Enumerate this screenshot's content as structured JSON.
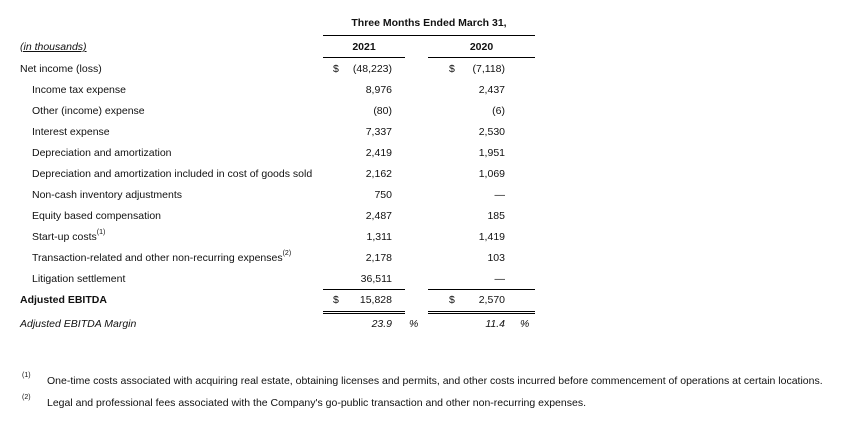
{
  "header": {
    "period": "Three Months Ended March 31,",
    "units": "(in thousands)",
    "year1": "2021",
    "year2": "2020"
  },
  "rows": [
    {
      "label": "Net income (loss)",
      "cur1": "$",
      "v1": "(48,223)",
      "cur2": "$",
      "v2": "(7,118)"
    },
    {
      "label": "Income tax expense",
      "v1": "8,976",
      "v2": "2,437"
    },
    {
      "label": "Other (income) expense",
      "v1": "(80)",
      "v2": "(6)"
    },
    {
      "label": "Interest expense",
      "v1": "7,337",
      "v2": "2,530"
    },
    {
      "label": "Depreciation and amortization",
      "v1": "2,419",
      "v2": "1,951"
    },
    {
      "label": "Depreciation and amortization included in cost of goods sold",
      "v1": "2,162",
      "v2": "1,069"
    },
    {
      "label": "Non-cash inventory adjustments",
      "v1": "750",
      "v2": "—"
    },
    {
      "label": "Equity based compensation",
      "v1": "2,487",
      "v2": "185"
    },
    {
      "label": "Start-up costs",
      "sup": "(1)",
      "v1": "1,311",
      "v2": "1,419"
    },
    {
      "label": "Transaction-related and other non-recurring expenses",
      "sup": "(2)",
      "v1": "2,178",
      "v2": "103"
    },
    {
      "label": "Litigation settlement",
      "v1": "36,511",
      "v2": "—"
    }
  ],
  "total": {
    "label": "Adjusted EBITDA",
    "cur1": "$",
    "v1": "15,828",
    "cur2": "$",
    "v2": "2,570"
  },
  "margin": {
    "label": "Adjusted EBITDA Margin",
    "v1": "23.9",
    "p1": "%",
    "v2": "11.4",
    "p2": "%"
  },
  "footnotes": [
    {
      "marker": "(1)",
      "text": "One-time costs associated with acquiring real estate, obtaining licenses and permits, and other costs incurred before commencement of operations at certain locations."
    },
    {
      "marker": "(2)",
      "text": "Legal and professional fees associated with the Company's go-public transaction and other non-recurring expenses."
    }
  ]
}
